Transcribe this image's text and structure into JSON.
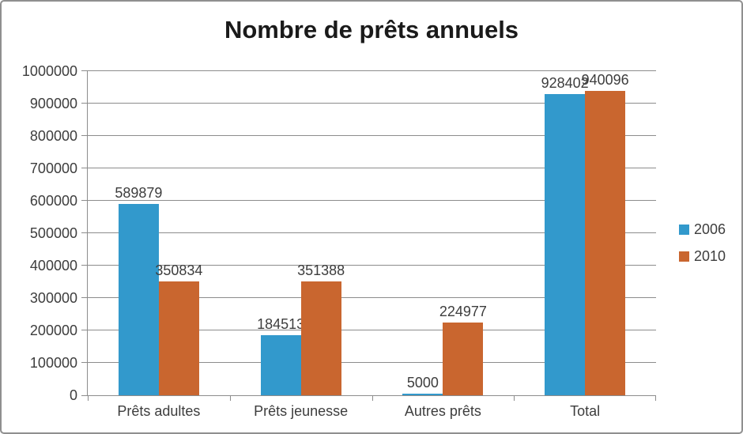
{
  "chart_data": {
    "type": "bar",
    "title": "Nombre de prêts annuels",
    "categories": [
      "Prêts adultes",
      "Prêts jeunesse",
      "Autres prêts",
      "Total"
    ],
    "series": [
      {
        "name": "2006",
        "color": "#3299cc",
        "values": [
          589879,
          184513,
          5000,
          928402
        ]
      },
      {
        "name": "2010",
        "color": "#c9662f",
        "values": [
          350834,
          351388,
          224977,
          940096
        ]
      }
    ],
    "ylim": [
      0,
      1000000
    ],
    "yticks": [
      0,
      100000,
      200000,
      300000,
      400000,
      500000,
      600000,
      700000,
      800000,
      900000,
      1000000
    ],
    "grid": "horizontal",
    "legend_position": "right",
    "data_labels": true
  },
  "style": {
    "grid_color": "#8c8c8c",
    "axis_color": "#8c8c8c",
    "border_color": "#8f8f8f",
    "text_color": "#3d3d3d",
    "title_color": "#1a1a1a"
  }
}
